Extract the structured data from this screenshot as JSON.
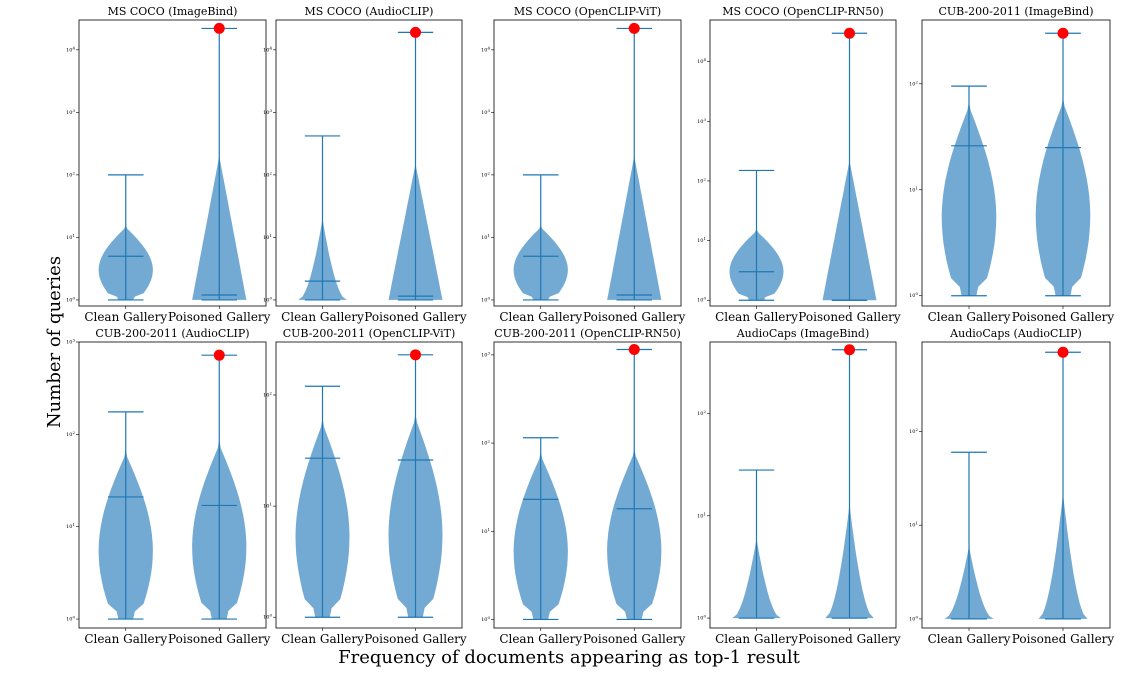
{
  "figure": {
    "ylabel": "Number of queries",
    "xlabel": "Frequency of documents appearing as top-1 result"
  },
  "colors": {
    "violin": "#5b9bcb",
    "line": "#1f77b4",
    "marker": "#ff0000"
  },
  "chart_data": [
    {
      "type": "violin",
      "title": "MS COCO (ImageBind)",
      "categories": [
        "Clean Gallery",
        "Poisoned Gallery"
      ],
      "ylog": true,
      "ylim": [
        0.8,
        30000
      ],
      "yticks": [
        1,
        10,
        100,
        1000,
        10000
      ],
      "series": [
        {
          "name": "Clean Gallery",
          "min": 1,
          "max": 100,
          "median": 5,
          "bulk_high": 20
        },
        {
          "name": "Poisoned Gallery",
          "min": 1,
          "max": 22000,
          "median": 1.2,
          "bulk_high": 200,
          "marker": 22000
        }
      ]
    },
    {
      "type": "violin",
      "title": "MS COCO (AudioCLIP)",
      "categories": [
        "Clean Gallery",
        "Poisoned Gallery"
      ],
      "ylog": true,
      "ylim": [
        0.8,
        30000
      ],
      "yticks": [
        1,
        10,
        100,
        1000,
        10000
      ],
      "series": [
        {
          "name": "Clean Gallery",
          "min": 1,
          "max": 420,
          "median": 2,
          "bulk_high": 20
        },
        {
          "name": "Poisoned Gallery",
          "min": 1,
          "max": 19000,
          "median": 1.15,
          "bulk_high": 150,
          "marker": 19000
        }
      ]
    },
    {
      "type": "violin",
      "title": "MS COCO (OpenCLIP-ViT)",
      "categories": [
        "Clean Gallery",
        "Poisoned Gallery"
      ],
      "ylog": true,
      "ylim": [
        0.8,
        30000
      ],
      "yticks": [
        1,
        10,
        100,
        1000,
        10000
      ],
      "series": [
        {
          "name": "Clean Gallery",
          "min": 1,
          "max": 100,
          "median": 5,
          "bulk_high": 20
        },
        {
          "name": "Poisoned Gallery",
          "min": 1,
          "max": 22000,
          "median": 1.2,
          "bulk_high": 200,
          "marker": 22000
        }
      ]
    },
    {
      "type": "violin",
      "title": "MS COCO (OpenCLIP-RN50)",
      "categories": [
        "Clean Gallery",
        "Poisoned Gallery"
      ],
      "ylog": true,
      "ylim": [
        0.8,
        50000
      ],
      "yticks": [
        1,
        10,
        100,
        1000,
        10000
      ],
      "series": [
        {
          "name": "Clean Gallery",
          "min": 1,
          "max": 150,
          "median": 3,
          "bulk_high": 20
        },
        {
          "name": "Poisoned Gallery",
          "min": 1,
          "max": 30000,
          "median": 1,
          "bulk_high": 220,
          "marker": 30000
        }
      ]
    },
    {
      "type": "violin",
      "title": "CUB-200-2011 (ImageBind)",
      "categories": [
        "Clean Gallery",
        "Poisoned Gallery"
      ],
      "ylog": true,
      "ylim": [
        0.8,
        400
      ],
      "yticks": [
        1,
        10,
        100
      ],
      "series": [
        {
          "name": "Clean Gallery",
          "min": 1,
          "max": 95,
          "median": 26,
          "bulk_high": 100
        },
        {
          "name": "Poisoned Gallery",
          "min": 1,
          "max": 300,
          "median": 25,
          "bulk_high": 110,
          "marker": 300
        }
      ]
    },
    {
      "type": "violin",
      "title": "CUB-200-2011 (AudioCLIP)",
      "categories": [
        "Clean Gallery",
        "Poisoned Gallery"
      ],
      "ylog": true,
      "ylim": [
        0.8,
        1000
      ],
      "yticks": [
        1,
        10,
        100,
        1000
      ],
      "series": [
        {
          "name": "Clean Gallery",
          "min": 1,
          "max": 175,
          "median": 21,
          "bulk_high": 100
        },
        {
          "name": "Poisoned Gallery",
          "min": 1,
          "max": 720,
          "median": 17,
          "bulk_high": 130,
          "marker": 720
        }
      ]
    },
    {
      "type": "violin",
      "title": "CUB-200-2011 (OpenCLIP-ViT)",
      "categories": [
        "Clean Gallery",
        "Poisoned Gallery"
      ],
      "ylog": true,
      "ylim": [
        0.8,
        300
      ],
      "yticks": [
        1,
        10,
        100
      ],
      "series": [
        {
          "name": "Clean Gallery",
          "min": 1,
          "max": 120,
          "median": 27,
          "bulk_high": 90
        },
        {
          "name": "Poisoned Gallery",
          "min": 1,
          "max": 230,
          "median": 26,
          "bulk_high": 100,
          "marker": 230
        }
      ]
    },
    {
      "type": "violin",
      "title": "CUB-200-2011 (OpenCLIP-RN50)",
      "categories": [
        "Clean Gallery",
        "Poisoned Gallery"
      ],
      "ylog": true,
      "ylim": [
        0.8,
        1400
      ],
      "yticks": [
        1,
        10,
        100,
        1000
      ],
      "series": [
        {
          "name": "Clean Gallery",
          "min": 1,
          "max": 115,
          "median": 23,
          "bulk_high": 120
        },
        {
          "name": "Poisoned Gallery",
          "min": 1,
          "max": 1150,
          "median": 18,
          "bulk_high": 130,
          "marker": 1150
        }
      ]
    },
    {
      "type": "violin",
      "title": "AudioCaps (ImageBind)",
      "categories": [
        "Clean Gallery",
        "Poisoned Gallery"
      ],
      "ylog": true,
      "ylim": [
        0.8,
        500
      ],
      "yticks": [
        1,
        10,
        100
      ],
      "series": [
        {
          "name": "Clean Gallery",
          "min": 1,
          "max": 28,
          "median": 1,
          "bulk_high": 6
        },
        {
          "name": "Poisoned Gallery",
          "min": 1,
          "max": 420,
          "median": 1,
          "bulk_high": 13,
          "marker": 420
        }
      ]
    },
    {
      "type": "violin",
      "title": "AudioCaps (AudioCLIP)",
      "categories": [
        "Clean Gallery",
        "Poisoned Gallery"
      ],
      "ylog": true,
      "ylim": [
        0.8,
        900
      ],
      "yticks": [
        1,
        10,
        100
      ],
      "series": [
        {
          "name": "Clean Gallery",
          "min": 1,
          "max": 60,
          "median": 1,
          "bulk_high": 6
        },
        {
          "name": "Poisoned Gallery",
          "min": 1,
          "max": 700,
          "median": 1,
          "bulk_high": 22,
          "marker": 700
        }
      ]
    }
  ]
}
